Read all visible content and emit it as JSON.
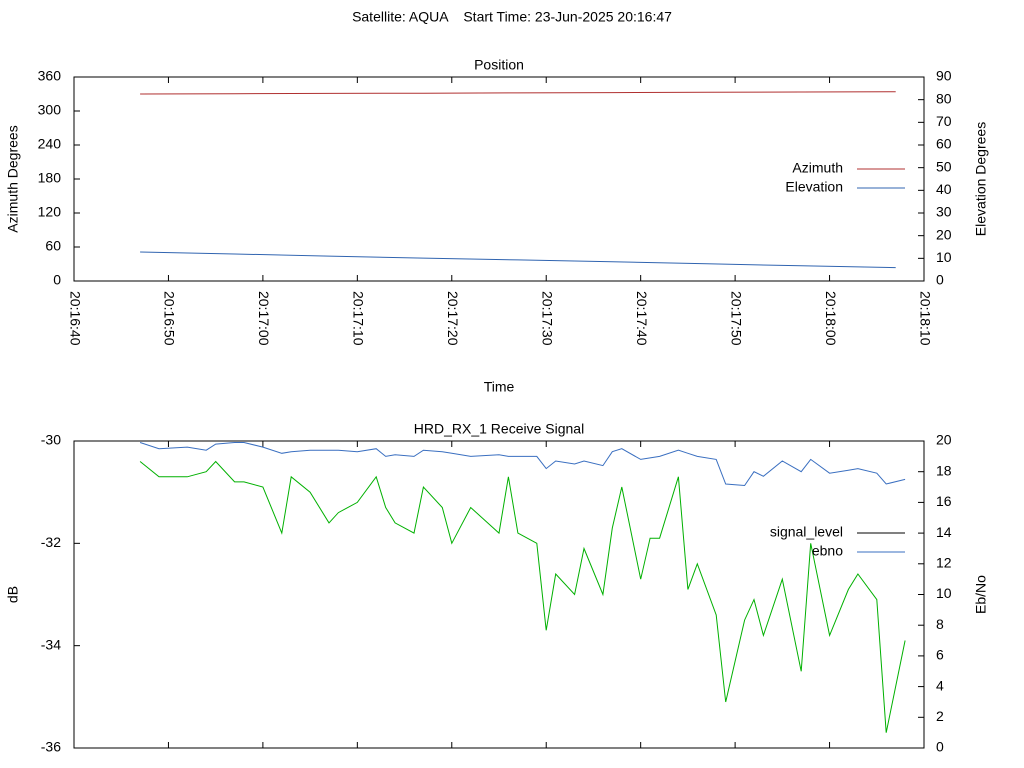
{
  "title": "Satellite: AQUA    Start Time: 23-Jun-2025 20:16:47",
  "chart_data": [
    {
      "type": "line",
      "title": "Position",
      "xlabel": "Time",
      "ylabel": "Azimuth Degrees",
      "y2label": "Elevation Degrees",
      "x": [
        "20:16:47",
        "20:16:57",
        "20:17:07",
        "20:17:17",
        "20:17:27",
        "20:17:37",
        "20:17:47",
        "20:17:57",
        "20:18:07"
      ],
      "xlim": [
        "20:16:40",
        "20:18:10"
      ],
      "xticks": [
        "20:16:40",
        "20:16:50",
        "20:17:00",
        "20:17:10",
        "20:17:20",
        "20:17:30",
        "20:17:40",
        "20:17:50",
        "20:18:00",
        "20:18:10"
      ],
      "xtick_labels": true,
      "ylim": [
        0,
        360
      ],
      "yticks": [
        0,
        60,
        120,
        180,
        240,
        300,
        360
      ],
      "y2lim": [
        0,
        90
      ],
      "y2ticks": [
        0,
        10,
        20,
        30,
        40,
        50,
        60,
        70,
        80,
        90
      ],
      "legend": "right",
      "series": [
        {
          "name": "Azimuth",
          "color": "#b03030",
          "values": [
            330,
            330.5,
            331,
            331.5,
            332,
            332.5,
            333,
            333.5,
            334
          ]
        },
        {
          "name": "Elevation",
          "color": "#3064b0",
          "axis": "y2",
          "values": [
            12.8,
            11.9,
            11.0,
            10.1,
            9.3,
            8.5,
            7.6,
            6.7,
            5.9
          ]
        }
      ]
    },
    {
      "type": "line",
      "title": "HRD_RX_1 Receive Signal",
      "ylabel": "dB",
      "y2label": "Eb/No",
      "x": [
        "20:16:47",
        "20:16:49",
        "20:16:52",
        "20:16:54",
        "20:16:55",
        "20:16:57",
        "20:16:58",
        "20:17:00",
        "20:17:02",
        "20:17:03",
        "20:17:05",
        "20:17:07",
        "20:17:08",
        "20:17:10",
        "20:17:12",
        "20:17:13",
        "20:17:14",
        "20:17:16",
        "20:17:17",
        "20:17:19",
        "20:17:20",
        "20:17:22",
        "20:17:25",
        "20:17:26",
        "20:17:27",
        "20:17:29",
        "20:17:30",
        "20:17:31",
        "20:17:33",
        "20:17:34",
        "20:17:36",
        "20:17:37",
        "20:17:38",
        "20:17:40",
        "20:17:41",
        "20:17:42",
        "20:17:44",
        "20:17:45",
        "20:17:46",
        "20:17:48",
        "20:17:49",
        "20:17:51",
        "20:17:52",
        "20:17:53",
        "20:17:55",
        "20:17:57",
        "20:17:58",
        "20:18:00",
        "20:18:02",
        "20:18:03",
        "20:18:05",
        "20:18:06",
        "20:18:08"
      ],
      "xlim": [
        "20:16:40",
        "20:18:10"
      ],
      "xticks": [
        "20:16:40",
        "20:16:50",
        "20:17:00",
        "20:17:10",
        "20:17:20",
        "20:17:30",
        "20:17:40",
        "20:17:50",
        "20:18:00",
        "20:18:10"
      ],
      "xtick_labels": false,
      "ylim": [
        -36,
        -30
      ],
      "yticks": [
        -36,
        -34,
        -32,
        -30
      ],
      "y2lim": [
        0,
        20
      ],
      "y2ticks": [
        0,
        2,
        4,
        6,
        8,
        10,
        12,
        14,
        16,
        18,
        20
      ],
      "legend": "right",
      "series": [
        {
          "name": "signal_level",
          "color": "#00b000",
          "legend_color": "#000000",
          "values": [
            -30.4,
            -30.7,
            -30.7,
            -30.6,
            -30.4,
            -30.8,
            -30.8,
            -30.9,
            -31.8,
            -30.7,
            -31.0,
            -31.6,
            -31.4,
            -31.2,
            -30.7,
            -31.3,
            -31.6,
            -31.8,
            -30.9,
            -31.3,
            -32.0,
            -31.3,
            -31.8,
            -30.7,
            -31.8,
            -32.0,
            -33.7,
            -32.6,
            -33.0,
            -32.1,
            -33.0,
            -31.7,
            -30.9,
            -32.7,
            -31.9,
            -31.9,
            -30.7,
            -32.9,
            -32.4,
            -33.4,
            -35.1,
            -33.5,
            -33.1,
            -33.8,
            -32.7,
            -34.5,
            -32.0,
            -33.8,
            -32.9,
            -32.6,
            -33.1,
            -35.7,
            -33.9
          ]
        },
        {
          "name": "ebno",
          "color": "#3a6fc0",
          "axis": "y2",
          "values": [
            19.9,
            19.5,
            19.6,
            19.4,
            19.8,
            19.9,
            19.9,
            19.6,
            19.2,
            19.3,
            19.4,
            19.4,
            19.4,
            19.3,
            19.5,
            19.0,
            19.1,
            19.0,
            19.4,
            19.3,
            19.2,
            19.0,
            19.1,
            19.0,
            19.0,
            19.0,
            18.2,
            18.7,
            18.5,
            18.7,
            18.4,
            19.3,
            19.5,
            18.8,
            18.9,
            19.0,
            19.4,
            19.2,
            19.0,
            18.8,
            17.2,
            17.1,
            18.0,
            17.7,
            18.7,
            18.0,
            18.8,
            17.9,
            18.1,
            18.2,
            17.9,
            17.2,
            17.5
          ]
        }
      ]
    }
  ]
}
